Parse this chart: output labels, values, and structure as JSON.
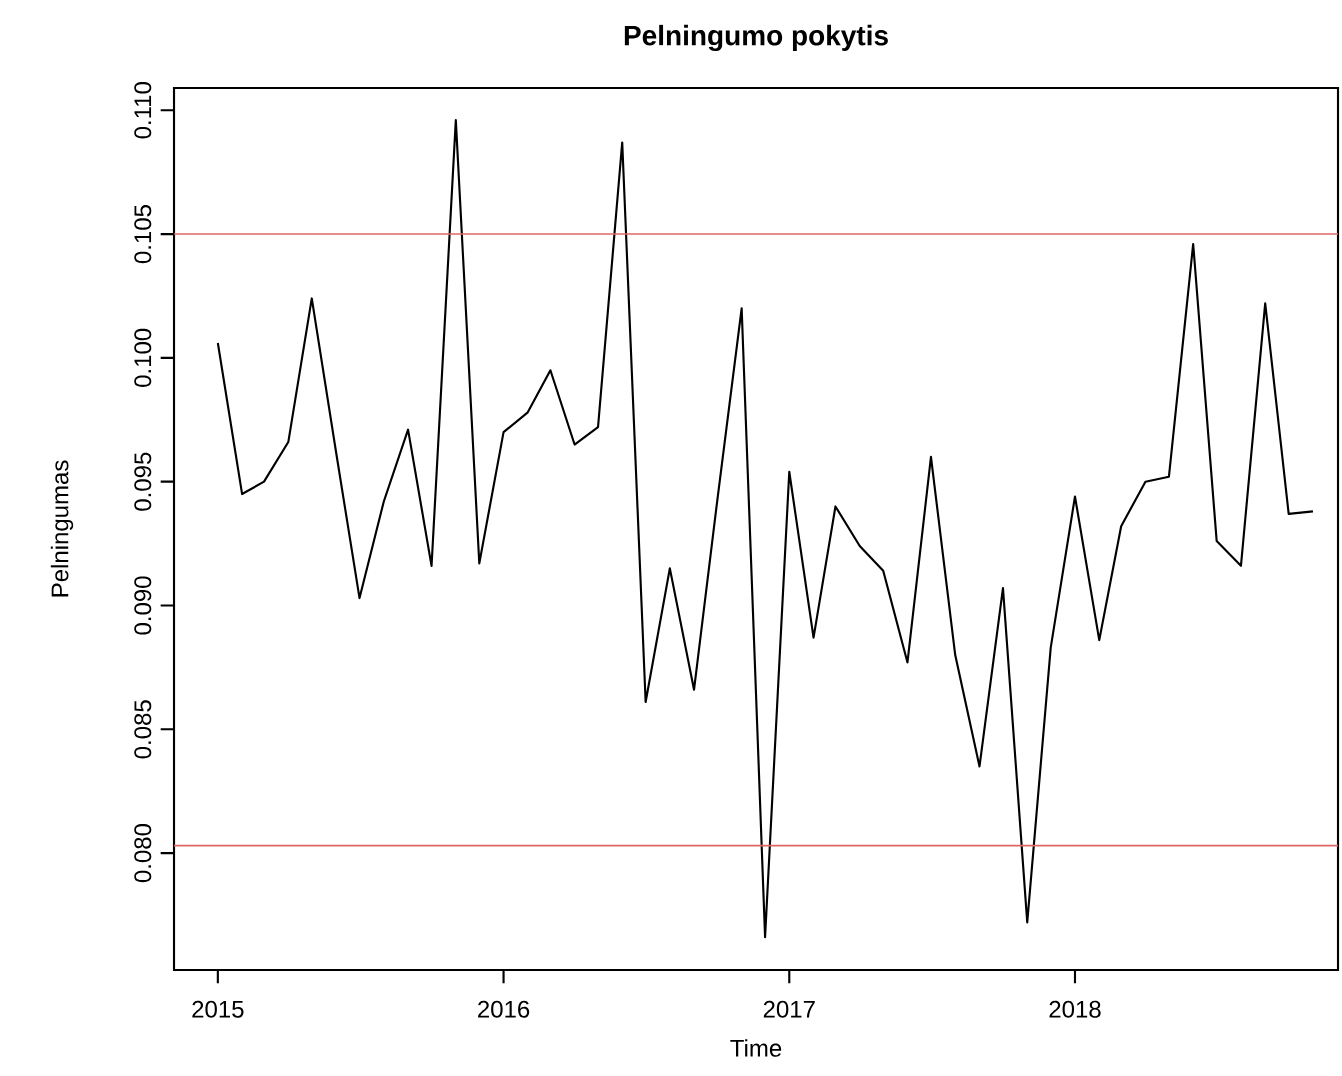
{
  "chart_data": {
    "type": "line",
    "title": "Pelningumo pokytis",
    "xlabel": "Time",
    "ylabel": "Pelningumas",
    "x": [
      "2015-01",
      "2015-02",
      "2015-03",
      "2015-04",
      "2015-05",
      "2015-06",
      "2015-07",
      "2015-08",
      "2015-09",
      "2015-10",
      "2015-11",
      "2015-12",
      "2016-01",
      "2016-02",
      "2016-03",
      "2016-04",
      "2016-05",
      "2016-06",
      "2016-07",
      "2016-08",
      "2016-09",
      "2016-10",
      "2016-11",
      "2016-12",
      "2017-01",
      "2017-02",
      "2017-03",
      "2017-04",
      "2017-05",
      "2017-06",
      "2017-07",
      "2017-08",
      "2017-09",
      "2017-10",
      "2017-11",
      "2017-12",
      "2018-01",
      "2018-02",
      "2018-03",
      "2018-04",
      "2018-05",
      "2018-06",
      "2018-07",
      "2018-08",
      "2018-09",
      "2018-10",
      "2018-11"
    ],
    "series": [
      {
        "color": "#000000",
        "values": [
          0.1006,
          0.0945,
          0.095,
          0.0966,
          0.1024,
          0.0962,
          0.0903,
          0.0942,
          0.0971,
          0.0916,
          0.1096,
          0.0917,
          0.097,
          0.0978,
          0.0995,
          0.0965,
          0.0972,
          0.1087,
          0.0861,
          0.0915,
          0.0866,
          0.0943,
          0.102,
          0.0766,
          0.0954,
          0.0887,
          0.094,
          0.0924,
          0.0914,
          0.0877,
          0.096,
          0.088,
          0.0835,
          0.0907,
          0.0772,
          0.0883,
          0.0944,
          0.0886,
          0.0932,
          0.095,
          0.0952,
          0.1046,
          0.0926,
          0.0916,
          0.1022,
          0.0937,
          0.0938
        ]
      }
    ],
    "xlim": [
      "2014-11-06",
      "2018-12-03"
    ],
    "xticks": [
      "2015",
      "2016",
      "2017",
      "2018"
    ],
    "ylim": [
      0.07528,
      0.1109
    ],
    "yticks": [
      {
        "value": 0.08,
        "label": "0.080"
      },
      {
        "value": 0.085,
        "label": "0.085"
      },
      {
        "value": 0.09,
        "label": "0.090"
      },
      {
        "value": 0.095,
        "label": "0.095"
      },
      {
        "value": 0.1,
        "label": "0.100"
      },
      {
        "value": 0.105,
        "label": "0.105"
      },
      {
        "value": 0.11,
        "label": "0.110"
      }
    ],
    "ref_lines": [
      {
        "axis": "y",
        "value": 0.105,
        "color": "#e06666"
      },
      {
        "axis": "y",
        "value": 0.0803,
        "color": "#e06666"
      }
    ],
    "marker": "none",
    "line_style": "solid"
  }
}
